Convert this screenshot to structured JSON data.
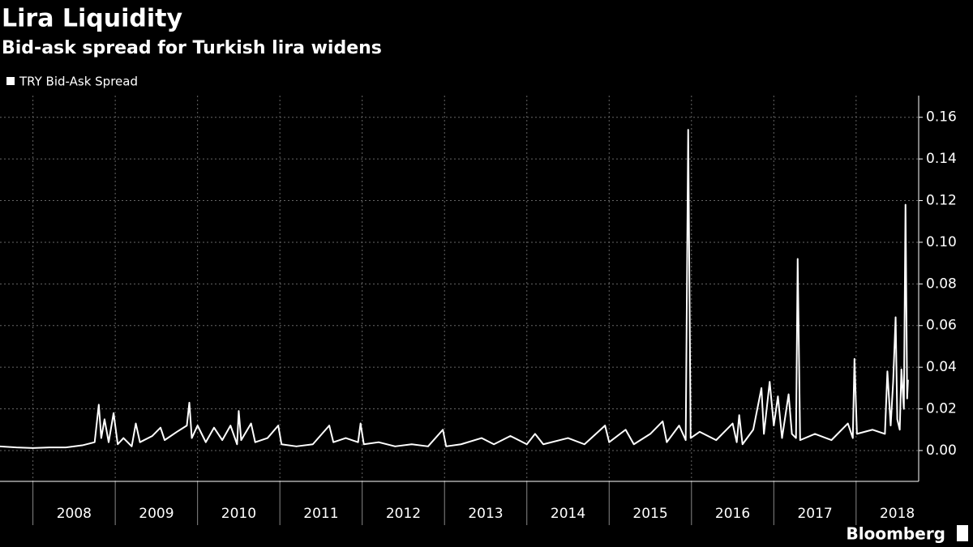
{
  "chart_data": {
    "type": "line",
    "title": "Lira Liquidity",
    "subtitle": "Bid-ask spread for Turkish lira widens",
    "source": "Bloomberg",
    "x": [
      2007.6,
      2007.8,
      2008.0,
      2008.2,
      2008.4,
      2008.6,
      2008.75,
      2008.8,
      2008.83,
      2008.87,
      2008.92,
      2008.98,
      2009.03,
      2009.1,
      2009.2,
      2009.25,
      2009.3,
      2009.45,
      2009.55,
      2009.6,
      2009.75,
      2009.87,
      2009.9,
      2009.93,
      2010.0,
      2010.1,
      2010.2,
      2010.3,
      2010.4,
      2010.48,
      2010.5,
      2010.53,
      2010.65,
      2010.7,
      2010.85,
      2010.98,
      2011.02,
      2011.2,
      2011.4,
      2011.6,
      2011.65,
      2011.8,
      2011.95,
      2011.98,
      2012.02,
      2012.2,
      2012.4,
      2012.6,
      2012.8,
      2012.98,
      2013.02,
      2013.2,
      2013.45,
      2013.6,
      2013.8,
      2014.0,
      2014.1,
      2014.2,
      2014.5,
      2014.7,
      2014.95,
      2015.0,
      2015.2,
      2015.3,
      2015.5,
      2015.65,
      2015.7,
      2015.85,
      2015.93,
      2015.96,
      2015.99,
      2016.1,
      2016.3,
      2016.5,
      2016.55,
      2016.58,
      2016.62,
      2016.75,
      2016.85,
      2016.88,
      2016.95,
      2017.0,
      2017.05,
      2017.1,
      2017.18,
      2017.22,
      2017.27,
      2017.29,
      2017.32,
      2017.5,
      2017.7,
      2017.9,
      2017.96,
      2017.98,
      2018.01,
      2018.2,
      2018.35,
      2018.38,
      2018.42,
      2018.45,
      2018.48,
      2018.5,
      2018.53,
      2018.55,
      2018.58,
      2018.6,
      2018.62,
      2018.63
    ],
    "series": [
      {
        "name": "TRY Bid-Ask Spread",
        "color": "#ffffff",
        "values": [
          0.002,
          0.0015,
          0.0012,
          0.0015,
          0.0015,
          0.0025,
          0.004,
          0.022,
          0.006,
          0.015,
          0.004,
          0.018,
          0.003,
          0.006,
          0.002,
          0.013,
          0.004,
          0.007,
          0.011,
          0.005,
          0.009,
          0.012,
          0.023,
          0.006,
          0.012,
          0.004,
          0.011,
          0.005,
          0.012,
          0.003,
          0.019,
          0.005,
          0.013,
          0.004,
          0.006,
          0.012,
          0.003,
          0.002,
          0.003,
          0.012,
          0.004,
          0.006,
          0.004,
          0.013,
          0.003,
          0.004,
          0.002,
          0.003,
          0.002,
          0.01,
          0.002,
          0.003,
          0.006,
          0.003,
          0.007,
          0.003,
          0.008,
          0.003,
          0.006,
          0.003,
          0.012,
          0.004,
          0.01,
          0.003,
          0.008,
          0.014,
          0.004,
          0.012,
          0.005,
          0.154,
          0.006,
          0.009,
          0.005,
          0.013,
          0.004,
          0.017,
          0.003,
          0.01,
          0.03,
          0.008,
          0.033,
          0.012,
          0.026,
          0.006,
          0.027,
          0.008,
          0.006,
          0.092,
          0.005,
          0.008,
          0.005,
          0.013,
          0.006,
          0.044,
          0.008,
          0.01,
          0.008,
          0.038,
          0.012,
          0.033,
          0.064,
          0.015,
          0.01,
          0.039,
          0.02,
          0.118,
          0.025,
          0.034
        ]
      }
    ],
    "xlim": [
      2007.6,
      2018.76
    ],
    "xgrid": [
      2008,
      2009,
      2010,
      2011,
      2012,
      2013,
      2014,
      2015,
      2016,
      2017,
      2018
    ],
    "xticks": [
      {
        "value": 2008.5,
        "label": "2008"
      },
      {
        "value": 2009.5,
        "label": "2009"
      },
      {
        "value": 2010.5,
        "label": "2010"
      },
      {
        "value": 2011.5,
        "label": "2011"
      },
      {
        "value": 2012.5,
        "label": "2012"
      },
      {
        "value": 2013.5,
        "label": "2013"
      },
      {
        "value": 2014.5,
        "label": "2014"
      },
      {
        "value": 2015.5,
        "label": "2015"
      },
      {
        "value": 2016.5,
        "label": "2016"
      },
      {
        "value": 2017.5,
        "label": "2017"
      },
      {
        "value": 2018.5,
        "label": "2018"
      }
    ],
    "ylim": [
      -0.0148,
      0.1704
    ],
    "yticks": [
      {
        "value": 0,
        "label": "0.00"
      },
      0.02,
      0.04,
      0.06,
      0.08,
      {
        "value": 0.1,
        "label": "0.10"
      },
      0.12,
      0.14,
      0.16
    ],
    "grid": true
  }
}
